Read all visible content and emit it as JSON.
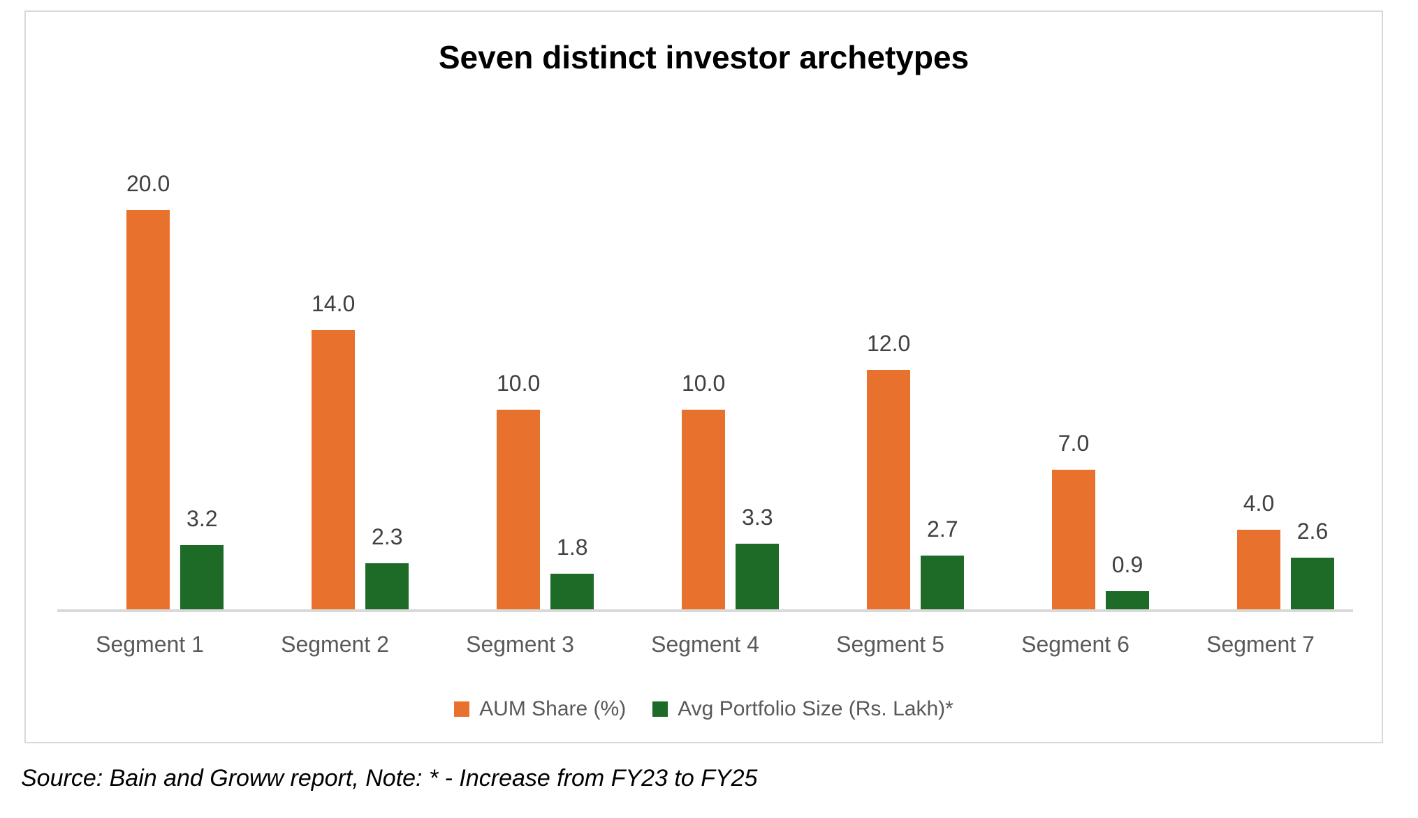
{
  "chart_data": {
    "type": "bar",
    "title": "Seven distinct investor archetypes",
    "categories": [
      "Segment 1",
      "Segment 2",
      "Segment 3",
      "Segment 4",
      "Segment 5",
      "Segment 6",
      "Segment 7"
    ],
    "series": [
      {
        "name": "AUM Share (%)",
        "color": "#E8722D",
        "values": [
          20.0,
          14.0,
          10.0,
          10.0,
          12.0,
          7.0,
          4.0
        ]
      },
      {
        "name": "Avg Portfolio Size (Rs. Lakh)*",
        "color": "#1E6B27",
        "values": [
          3.2,
          2.3,
          1.8,
          3.3,
          2.7,
          0.9,
          2.6
        ]
      }
    ],
    "data_labels": {
      "aum_share": [
        "20.0",
        "14.0",
        "10.0",
        "10.0",
        "12.0",
        "7.0",
        "4.0"
      ],
      "avg_portfolio_size": [
        "3.2",
        "2.3",
        "1.8",
        "3.3",
        "2.7",
        "0.9",
        "2.6"
      ]
    },
    "xlabel": "",
    "ylabel": "",
    "ylim": [
      0,
      20
    ],
    "grid": false,
    "legend_position": "bottom",
    "axis_color": "#d9d9d9",
    "data_label_color": "#404040",
    "category_label_color": "#595959",
    "title_color": "#000000"
  },
  "source_note": "Source: Bain and Groww report, Note: * - Increase from FY23 to FY25"
}
